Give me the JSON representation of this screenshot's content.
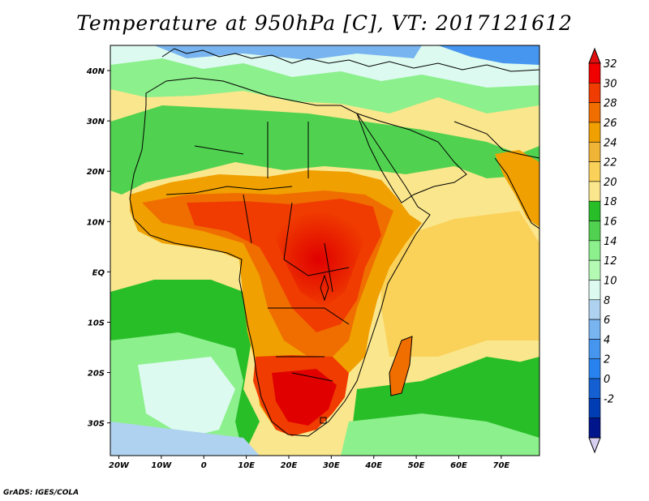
{
  "title": "Temperature at 950hPa [C], VT: 2017121612",
  "credit": "GrADS: IGES/COLA",
  "map": {
    "lon_labels": [
      "20W",
      "10W",
      "0",
      "10E",
      "20E",
      "30E",
      "40E",
      "50E",
      "60E",
      "70E"
    ],
    "lon_values": [
      -20,
      -10,
      0,
      10,
      20,
      30,
      40,
      50,
      60,
      70
    ],
    "lat_labels": [
      "40N",
      "30N",
      "20N",
      "10N",
      "EQ",
      "10S",
      "20S",
      "30S"
    ],
    "lat_values": [
      40,
      30,
      20,
      10,
      0,
      -10,
      -20,
      -30
    ],
    "lon_range": [
      -22,
      79
    ],
    "lat_range": [
      -36.5,
      45
    ],
    "ocean_color": "#fae68c"
  },
  "colorbar": {
    "labels": [
      "32",
      "30",
      "28",
      "26",
      "24",
      "22",
      "20",
      "18",
      "16",
      "14",
      "12",
      "10",
      "8",
      "6",
      "4",
      "2",
      "0",
      "-2"
    ],
    "colors": [
      "#f00000",
      "#f03c00",
      "#f06e00",
      "#f0a000",
      "#f0b436",
      "#fad25a",
      "#fae68c",
      "#28be28",
      "#50d250",
      "#8cf08c",
      "#b4fab4",
      "#dcfaf0",
      "#afd2f0",
      "#78b4f0",
      "#4696f0",
      "#2882f0",
      "#1460d2",
      "#003cb4",
      "#00148c"
    ],
    "over_color": "#e01010",
    "under_color": "#d8d0f0"
  }
}
